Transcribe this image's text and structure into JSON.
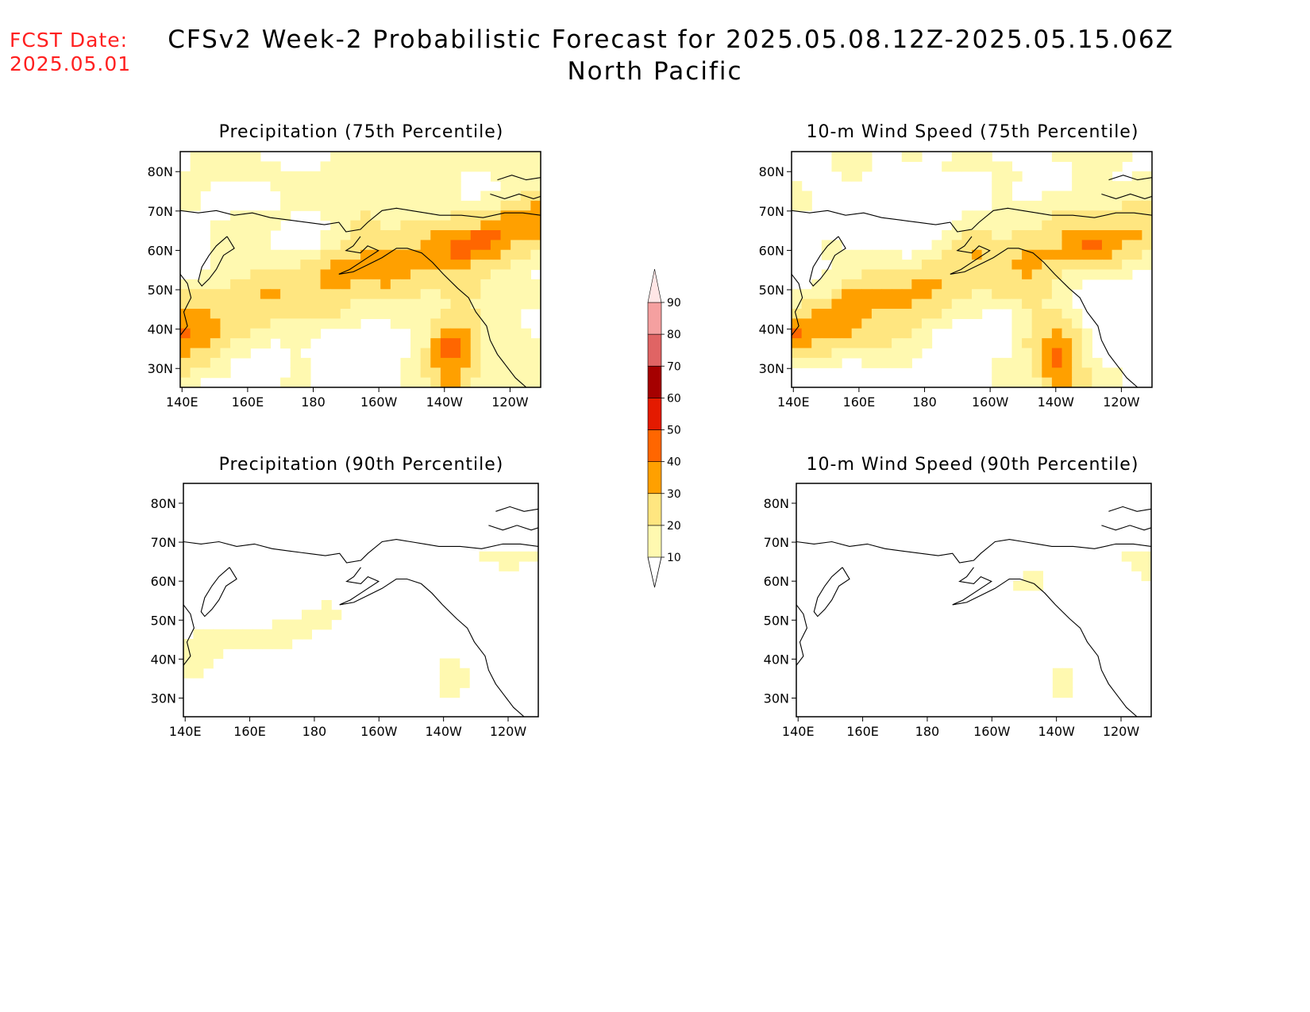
{
  "header": {
    "fcst_label": "FCST Date:",
    "fcst_date": "2025.05.01",
    "title_line1": "CFSv2 Week-2 Probabilistic Forecast for 2025.05.08.12Z-2025.05.15.06Z",
    "title_line2": "North Pacific"
  },
  "panels": [
    {
      "id": "p75",
      "title": "Precipitation (75th Percentile)",
      "intensity": 0.75,
      "seed": 1
    },
    {
      "id": "w75",
      "title": "10-m Wind Speed (75th Percentile)",
      "intensity": 0.7,
      "seed": 2
    },
    {
      "id": "p90",
      "title": "Precipitation (90th Percentile)",
      "intensity": 0.28,
      "seed": 3
    },
    {
      "id": "w90",
      "title": "10-m Wind Speed (90th Percentile)",
      "intensity": 0.26,
      "seed": 4
    }
  ],
  "axes": {
    "lat_labels": [
      "80N",
      "70N",
      "60N",
      "50N",
      "40N",
      "30N"
    ],
    "lon_labels": [
      "140E",
      "160E",
      "180",
      "160W",
      "140W",
      "120W"
    ]
  },
  "colorbar": {
    "levels": [
      "10",
      "20",
      "30",
      "40",
      "50",
      "60",
      "70",
      "80",
      "90"
    ],
    "colors": [
      "#fff9b0",
      "#ffe680",
      "#ffa000",
      "#ff6600",
      "#e41a00",
      "#a50000",
      "#e06464",
      "#f5a0a0",
      "#ffe6e6"
    ]
  }
}
